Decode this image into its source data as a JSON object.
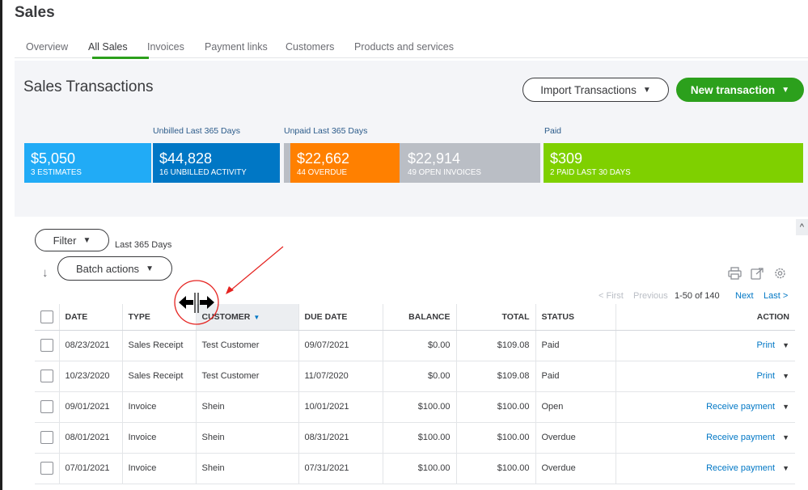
{
  "page_title": "Sales",
  "tabs": [
    "Overview",
    "All Sales",
    "Invoices",
    "Payment links",
    "Customers",
    "Products and services"
  ],
  "active_tab": "All Sales",
  "section_title": "Sales Transactions",
  "buttons": {
    "import": "Import Transactions",
    "new_transaction": "New transaction",
    "filter": "Filter",
    "batch_actions": "Batch actions"
  },
  "group_labels": {
    "unbilled": "Unbilled Last 365 Days",
    "unpaid": "Unpaid Last 365 Days",
    "paid": "Paid"
  },
  "tiles": [
    {
      "amount": "$5,050",
      "label": "3 ESTIMATES",
      "color": "#21abf6"
    },
    {
      "amount": "$44,828",
      "label": "16 UNBILLED ACTIVITY",
      "color": "#0077c5"
    },
    {
      "amount": "$22,662",
      "label": "44 OVERDUE",
      "color": "#ff8000"
    },
    {
      "amount": "$22,914",
      "label": "49 OPEN INVOICES",
      "color": "#babec5"
    },
    {
      "amount": "$309",
      "label": "2 PAID LAST 30 DAYS",
      "color": "#7fd000"
    }
  ],
  "filter_range": "Last 365 Days",
  "pagination": {
    "first": "< First",
    "previous": "Previous",
    "range": "1-50 of 140",
    "next": "Next",
    "last": "Last >"
  },
  "icons": {
    "sort": "sort-arrow-icon",
    "print": "printer-icon",
    "export": "export-icon",
    "settings": "gear-icon",
    "resize": "column-resize-icon"
  },
  "table": {
    "headers": {
      "date": "DATE",
      "type": "TYPE",
      "customer": "CUSTOMER",
      "due_date": "DUE DATE",
      "balance": "BALANCE",
      "total": "TOTAL",
      "status": "STATUS",
      "action": "ACTION"
    },
    "rows": [
      {
        "date": "08/23/2021",
        "type": "Sales Receipt",
        "customer": "Test Customer",
        "due_date": "09/07/2021",
        "balance": "$0.00",
        "total": "$109.08",
        "status": "Paid",
        "action": "Print"
      },
      {
        "date": "10/23/2020",
        "type": "Sales Receipt",
        "customer": "Test Customer",
        "due_date": "11/07/2020",
        "balance": "$0.00",
        "total": "$109.08",
        "status": "Paid",
        "action": "Print"
      },
      {
        "date": "09/01/2021",
        "type": "Invoice",
        "customer": "Shein",
        "due_date": "10/01/2021",
        "balance": "$100.00",
        "total": "$100.00",
        "status": "Open",
        "action": "Receive payment"
      },
      {
        "date": "08/01/2021",
        "type": "Invoice",
        "customer": "Shein",
        "due_date": "08/31/2021",
        "balance": "$100.00",
        "total": "$100.00",
        "status": "Overdue",
        "action": "Receive payment"
      },
      {
        "date": "07/01/2021",
        "type": "Invoice",
        "customer": "Shein",
        "due_date": "07/31/2021",
        "balance": "$100.00",
        "total": "$100.00",
        "status": "Overdue",
        "action": "Receive payment"
      }
    ]
  },
  "colors": {
    "brand_green": "#2ca01c",
    "link_blue": "#0077c5",
    "overdue_orange": "#ff8000",
    "annotation_red": "#e52320"
  }
}
